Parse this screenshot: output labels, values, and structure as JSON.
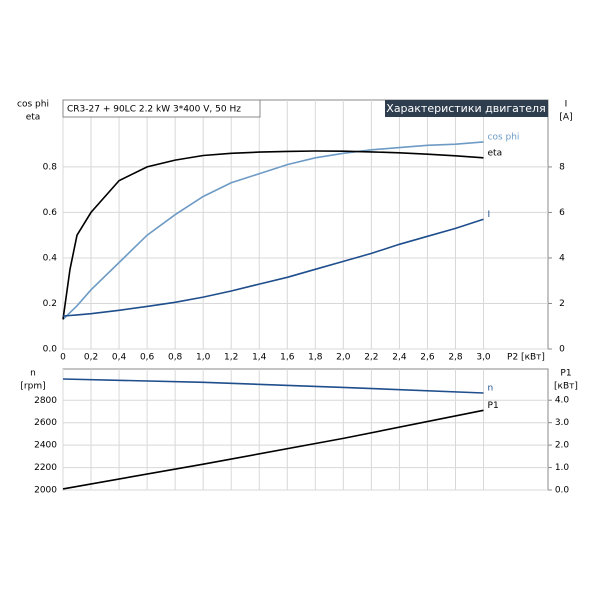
{
  "header": {
    "model": "CR3-27 + 90LC  2.2 kW  3*400 V, 50 Hz",
    "title": "Характеристики двигателя"
  },
  "chart_data": [
    {
      "type": "line",
      "y_label": [
        "cos phi",
        "eta"
      ],
      "y2_label": [
        "I",
        "[A]"
      ],
      "x_label": "P2 [кВт]",
      "x": [
        0,
        0.05,
        0.1,
        0.2,
        0.4,
        0.6,
        0.8,
        1.0,
        1.2,
        1.4,
        1.6,
        1.8,
        2.0,
        2.2,
        2.4,
        2.6,
        2.8,
        3.0
      ],
      "xlim": [
        0,
        3.46
      ],
      "ylim": [
        0,
        1.094
      ],
      "y2lim": [
        0,
        10.94
      ],
      "grid": true,
      "xticks": [
        0,
        {
          "value": 0.2,
          "label": "0,2"
        },
        {
          "value": 0.4,
          "label": "0,4"
        },
        {
          "value": 0.6,
          "label": "0,6"
        },
        {
          "value": 0.8,
          "label": "0,8"
        },
        {
          "value": 1.0,
          "label": "1,0"
        },
        {
          "value": 1.2,
          "label": "1,2"
        },
        {
          "value": 1.4,
          "label": "1,4"
        },
        {
          "value": 1.6,
          "label": "1,6"
        },
        {
          "value": 1.8,
          "label": "1,8"
        },
        {
          "value": 2.0,
          "label": "2,0"
        },
        {
          "value": 2.2,
          "label": "2,2"
        },
        {
          "value": 2.4,
          "label": "2,4"
        },
        {
          "value": 2.6,
          "label": "2,6"
        },
        {
          "value": 2.8,
          "label": "2,8"
        },
        {
          "value": 3.0,
          "label": "3,0"
        }
      ],
      "yticks": [
        {
          "value": 0,
          "label": "0.0"
        },
        {
          "value": 0.2,
          "label": "0.2"
        },
        {
          "value": 0.4,
          "label": "0.4"
        },
        {
          "value": 0.6,
          "label": "0.6"
        },
        {
          "value": 0.8,
          "label": "0.8"
        }
      ],
      "y2ticks": [
        0,
        2,
        4,
        6,
        8
      ],
      "series": [
        {
          "name": "cos phi",
          "color": "#6e9bc5",
          "values": [
            0.13,
            0.16,
            0.19,
            0.26,
            0.38,
            0.5,
            0.59,
            0.67,
            0.73,
            0.77,
            0.81,
            0.84,
            0.86,
            0.875,
            0.885,
            0.895,
            0.9,
            0.91
          ]
        },
        {
          "name": "eta",
          "color": "#000000",
          "values": [
            0.13,
            0.35,
            0.5,
            0.6,
            0.74,
            0.8,
            0.83,
            0.85,
            0.86,
            0.865,
            0.868,
            0.87,
            0.869,
            0.866,
            0.862,
            0.856,
            0.849,
            0.84
          ]
        },
        {
          "name": "I",
          "color": "#1f4e8c",
          "axis": "y2",
          "values": [
            1.45,
            1.47,
            1.5,
            1.55,
            1.7,
            1.87,
            2.05,
            2.28,
            2.55,
            2.85,
            3.15,
            3.5,
            3.85,
            4.2,
            4.6,
            4.95,
            5.3,
            5.7
          ]
        }
      ]
    },
    {
      "type": "line",
      "y_label": [
        "n",
        "[rpm]"
      ],
      "y2_label": [
        "P1",
        "[кВт]"
      ],
      "x": [
        0,
        1.0,
        2.0,
        3.0
      ],
      "xlim": [
        0,
        3.46
      ],
      "ylim": [
        2000,
        3079
      ],
      "y2lim": [
        0,
        5.39
      ],
      "grid": true,
      "yticks": [
        2000,
        2200,
        2400,
        2600,
        2800
      ],
      "y2ticks": [
        {
          "value": 0,
          "label": "0.0"
        },
        {
          "value": 1,
          "label": "1.0"
        },
        {
          "value": 2,
          "label": "2.0"
        },
        {
          "value": 3,
          "label": "3.0"
        },
        {
          "value": 4,
          "label": "4.0"
        }
      ],
      "series": [
        {
          "name": "n",
          "color": "#1f4e8c",
          "values": [
            2990,
            2960,
            2915,
            2865
          ]
        },
        {
          "name": "P1",
          "color": "#000000",
          "axis": "y2",
          "values": [
            0.05,
            1.15,
            2.3,
            3.55
          ]
        }
      ]
    }
  ]
}
